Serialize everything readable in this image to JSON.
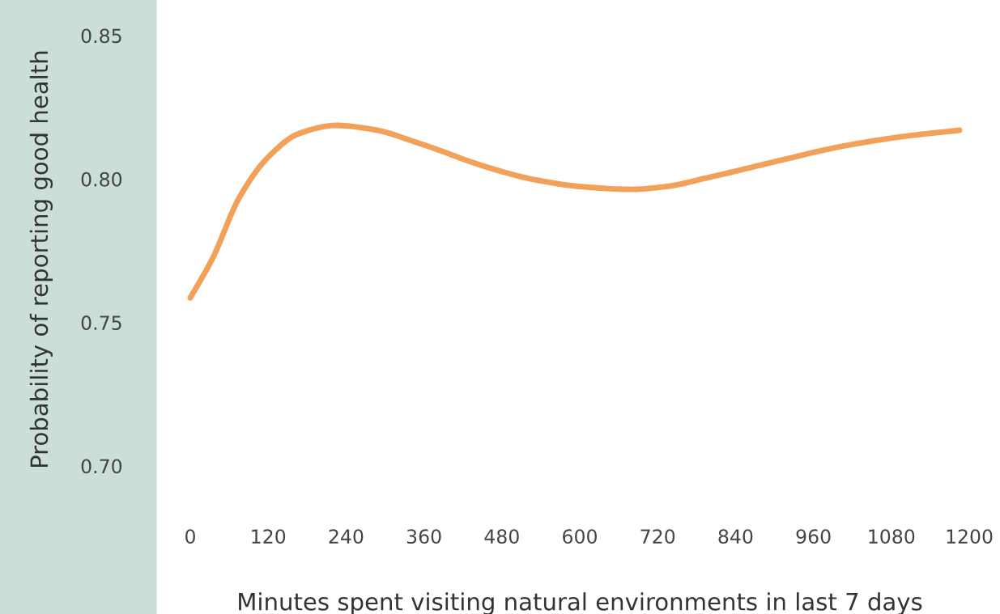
{
  "chart_data": {
    "type": "line",
    "xlabel": "Minutes spent visiting natural environments in last 7 days",
    "ylabel": "Probability of reporting good health",
    "x": [
      0,
      34,
      75,
      119,
      168,
      225,
      281,
      356,
      455,
      530,
      605,
      680,
      730,
      805,
      905,
      1004,
      1104,
      1185
    ],
    "series": [
      {
        "color": "#f2a15a",
        "values": [
          0.7586,
          0.7722,
          0.7933,
          0.8074,
          0.8159,
          0.8187,
          0.8173,
          0.8122,
          0.8043,
          0.7998,
          0.7973,
          0.7964,
          0.7973,
          0.8009,
          0.8063,
          0.8114,
          0.815,
          0.817
        ]
      }
    ],
    "xlim": [
      0,
      1200
    ],
    "ylim": [
      0.7,
      0.85
    ],
    "xticks": [
      0,
      120,
      240,
      360,
      480,
      600,
      720,
      840,
      960,
      1080,
      1200
    ],
    "yticks": [
      {
        "value": 0.7,
        "label": "0.70"
      },
      {
        "value": 0.75,
        "label": "0.75"
      },
      {
        "value": 0.8,
        "label": "0.80"
      },
      {
        "value": 0.85,
        "label": "0.85"
      }
    ],
    "grid": false,
    "legend": false,
    "marker": "none",
    "line_style": "solid"
  }
}
